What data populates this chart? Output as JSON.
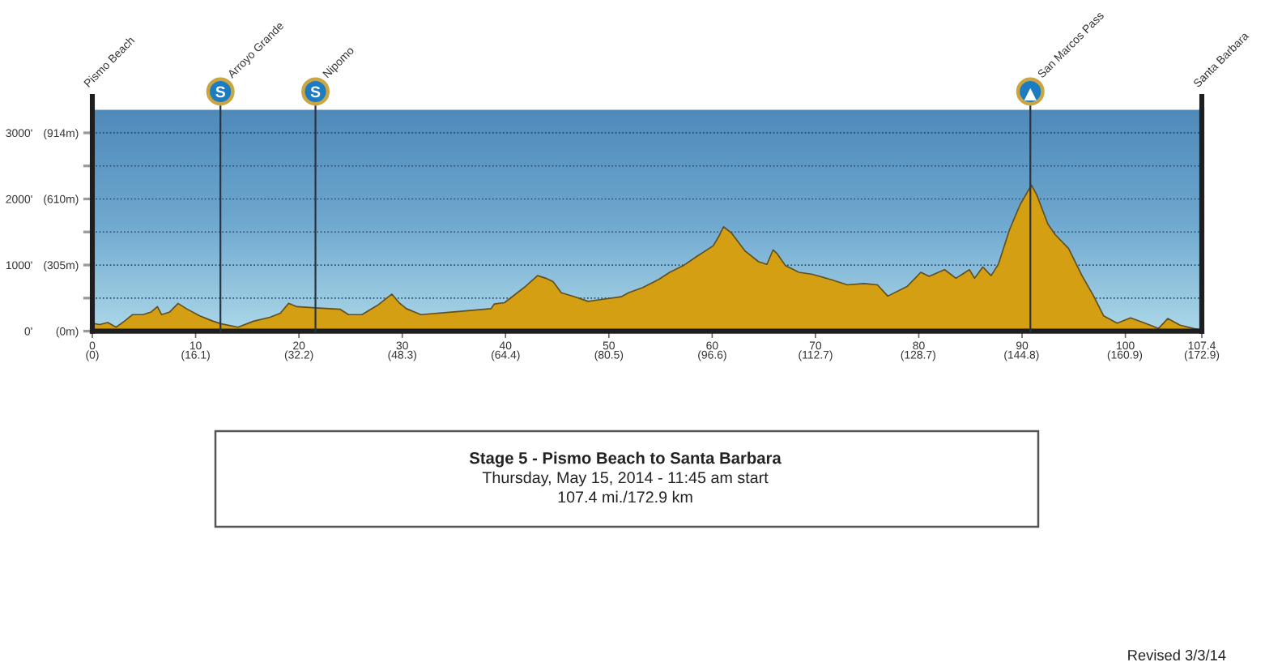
{
  "chart_data": {
    "type": "area",
    "title": "Stage 5 - Pismo Beach to Santa Barbara",
    "subtitle": "Thursday, May 15, 2014 - 11:45 am start",
    "color": "#d49f12",
    "x": [
      0,
      0.7,
      1.5,
      2.3,
      3.1,
      3.9,
      4.9,
      5.7,
      6.3,
      6.7,
      7.5,
      8.3,
      9.1,
      10.4,
      11.7,
      12.5,
      14.1,
      15.6,
      17.2,
      18.2,
      19.0,
      19.8,
      21.9,
      24.0,
      24.8,
      26.1,
      27.6,
      29.0,
      29.7,
      30.4,
      31.8,
      35.0,
      38.6,
      38.9,
      39.9,
      41.8,
      43.1,
      43.9,
      44.6,
      45.4,
      46.7,
      48.0,
      49.3,
      51.2,
      51.9,
      53.3,
      54.8,
      55.9,
      57.2,
      58.5,
      60.1,
      60.6,
      61.1,
      61.9,
      63.2,
      64.5,
      65.3,
      65.9,
      66.3,
      67.1,
      68.4,
      69.7,
      71.5,
      73.1,
      74.7,
      76.0,
      77.0,
      78.9,
      80.2,
      81.0,
      82.5,
      83.6,
      84.9,
      85.4,
      86.2,
      87.0,
      87.7,
      88.8,
      89.8,
      90.9,
      91.4,
      92.5,
      93.2,
      94.5,
      95.8,
      96.9,
      97.9,
      99.2,
      100.5,
      101.9,
      103.2,
      104.1,
      105.3,
      106.6,
      107.4
    ],
    "values": [
      120,
      100,
      130,
      60,
      150,
      250,
      250,
      290,
      370,
      250,
      290,
      420,
      340,
      230,
      150,
      110,
      60,
      150,
      210,
      270,
      420,
      370,
      350,
      330,
      250,
      250,
      390,
      560,
      430,
      340,
      250,
      290,
      340,
      410,
      430,
      660,
      840,
      800,
      750,
      580,
      520,
      450,
      480,
      520,
      580,
      660,
      780,
      890,
      990,
      1130,
      1290,
      1420,
      1580,
      1480,
      1210,
      1050,
      1010,
      1230,
      1170,
      990,
      890,
      860,
      780,
      700,
      720,
      700,
      530,
      680,
      890,
      830,
      930,
      800,
      930,
      800,
      970,
      840,
      1010,
      1540,
      1910,
      2210,
      2070,
      1620,
      1460,
      1250,
      840,
      540,
      230,
      120,
      200,
      120,
      40,
      190,
      90,
      40,
      20
    ],
    "xlim": [
      0,
      107.4
    ],
    "xticks": [
      0,
      10,
      20,
      30,
      40,
      50,
      60,
      70,
      80,
      90,
      100,
      107.4
    ],
    "x2lim": [
      0,
      172.9
    ],
    "x2ticks": [
      {
        "value": 0,
        "label": "(0)"
      },
      {
        "value": 16.1,
        "label": "(16.1)"
      },
      {
        "value": 32.2,
        "label": "(32.2)"
      },
      {
        "value": 48.3,
        "label": "(48.3)"
      },
      {
        "value": 64.4,
        "label": "(64.4)"
      },
      {
        "value": 80.5,
        "label": "(80.5)"
      },
      {
        "value": 96.6,
        "label": "(96.6)"
      },
      {
        "value": 112.7,
        "label": "(112.7)"
      },
      {
        "value": 128.7,
        "label": "(128.7)"
      },
      {
        "value": 144.8,
        "label": "(144.8)"
      },
      {
        "value": 160.9,
        "label": "(160.9)"
      },
      {
        "value": 172.9,
        "label": "(172.9)"
      }
    ],
    "ylim": [
      0,
      3350
    ],
    "yticks": [
      {
        "value": 0,
        "label": "0'"
      },
      {
        "value": 500,
        "label": null
      },
      {
        "value": 1000,
        "label": "1000'"
      },
      {
        "value": 1500,
        "label": null
      },
      {
        "value": 2000,
        "label": "2000'"
      },
      {
        "value": 2500,
        "label": null
      },
      {
        "value": 3000,
        "label": "3000'"
      }
    ],
    "y2lim": [
      0,
      1021
    ],
    "y2ticks": [
      {
        "value": 0,
        "label": "(0m)"
      },
      {
        "value": 305,
        "label": "(305m)"
      },
      {
        "value": 610,
        "label": "(610m)"
      },
      {
        "value": 914,
        "label": "(914m)"
      }
    ],
    "grid": "y",
    "ref_lines": [
      {
        "axis": "x",
        "value": 12.4,
        "label": "Arroyo Grande",
        "color": "#2b3440"
      },
      {
        "axis": "x",
        "value": 21.6,
        "label": "Nipomo",
        "color": "#2b3440"
      },
      {
        "axis": "x",
        "value": 90.8,
        "label": "San Marcos Pass",
        "color": "#2b3440"
      },
      {
        "axis": "x",
        "value": 107.4,
        "label": "Santa Barbara",
        "color": "#1e1e1e"
      }
    ],
    "annotations": [
      "Pismo Beach",
      "S",
      "S",
      "107.4 mi./172.9 km",
      "Revised 3/3/14"
    ]
  }
}
